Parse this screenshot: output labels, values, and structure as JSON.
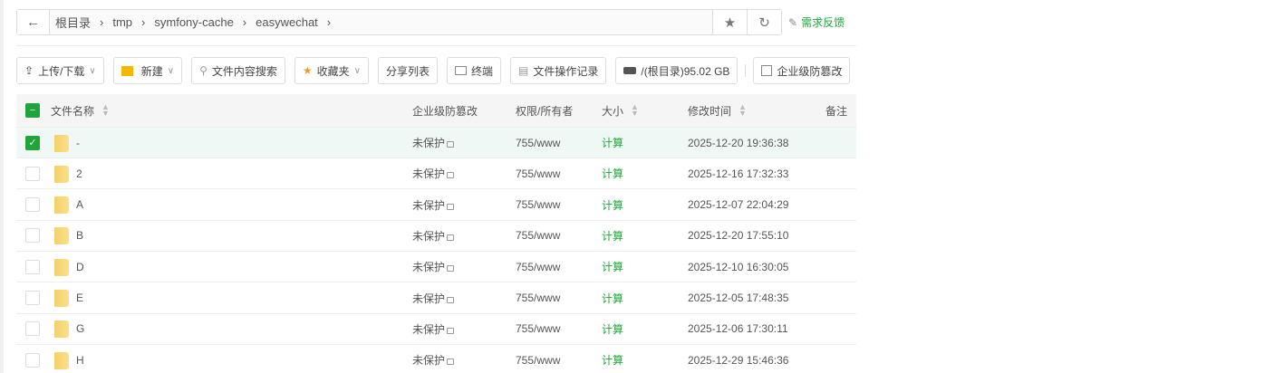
{
  "breadcrumb": [
    "根目录",
    "tmp",
    "symfony-cache",
    "easywechat"
  ],
  "feedback": "需求反馈",
  "toolbar": {
    "upload": "上传/下载",
    "new": "新建",
    "search": "文件内容搜索",
    "favorites": "收藏夹",
    "share": "分享列表",
    "terminal": "终端",
    "oplog": "文件操作记录",
    "disk": "/(根目录)95.02 GB",
    "tamper": "企业级防篡改"
  },
  "columns": {
    "name": "文件名称",
    "tamper": "企业级防篡改",
    "perm": "权限/所有者",
    "size": "大小",
    "mtime": "修改时间",
    "note": "备注"
  },
  "accent": "#20a53a",
  "rows": [
    {
      "name": "-",
      "tamper": "未保护",
      "perm": "755/www",
      "size": "计算",
      "mtime": "2025-12-20 19:36:38",
      "checked": true
    },
    {
      "name": "2",
      "tamper": "未保护",
      "perm": "755/www",
      "size": "计算",
      "mtime": "2025-12-16 17:32:33"
    },
    {
      "name": "A",
      "tamper": "未保护",
      "perm": "755/www",
      "size": "计算",
      "mtime": "2025-12-07 22:04:29"
    },
    {
      "name": "B",
      "tamper": "未保护",
      "perm": "755/www",
      "size": "计算",
      "mtime": "2025-12-20 17:55:10"
    },
    {
      "name": "D",
      "tamper": "未保护",
      "perm": "755/www",
      "size": "计算",
      "mtime": "2025-12-10 16:30:05"
    },
    {
      "name": "E",
      "tamper": "未保护",
      "perm": "755/www",
      "size": "计算",
      "mtime": "2025-12-05 17:48:35"
    },
    {
      "name": "G",
      "tamper": "未保护",
      "perm": "755/www",
      "size": "计算",
      "mtime": "2025-12-06 17:30:11"
    },
    {
      "name": "H",
      "tamper": "未保护",
      "perm": "755/www",
      "size": "计算",
      "mtime": "2025-12-29 15:46:36"
    }
  ]
}
